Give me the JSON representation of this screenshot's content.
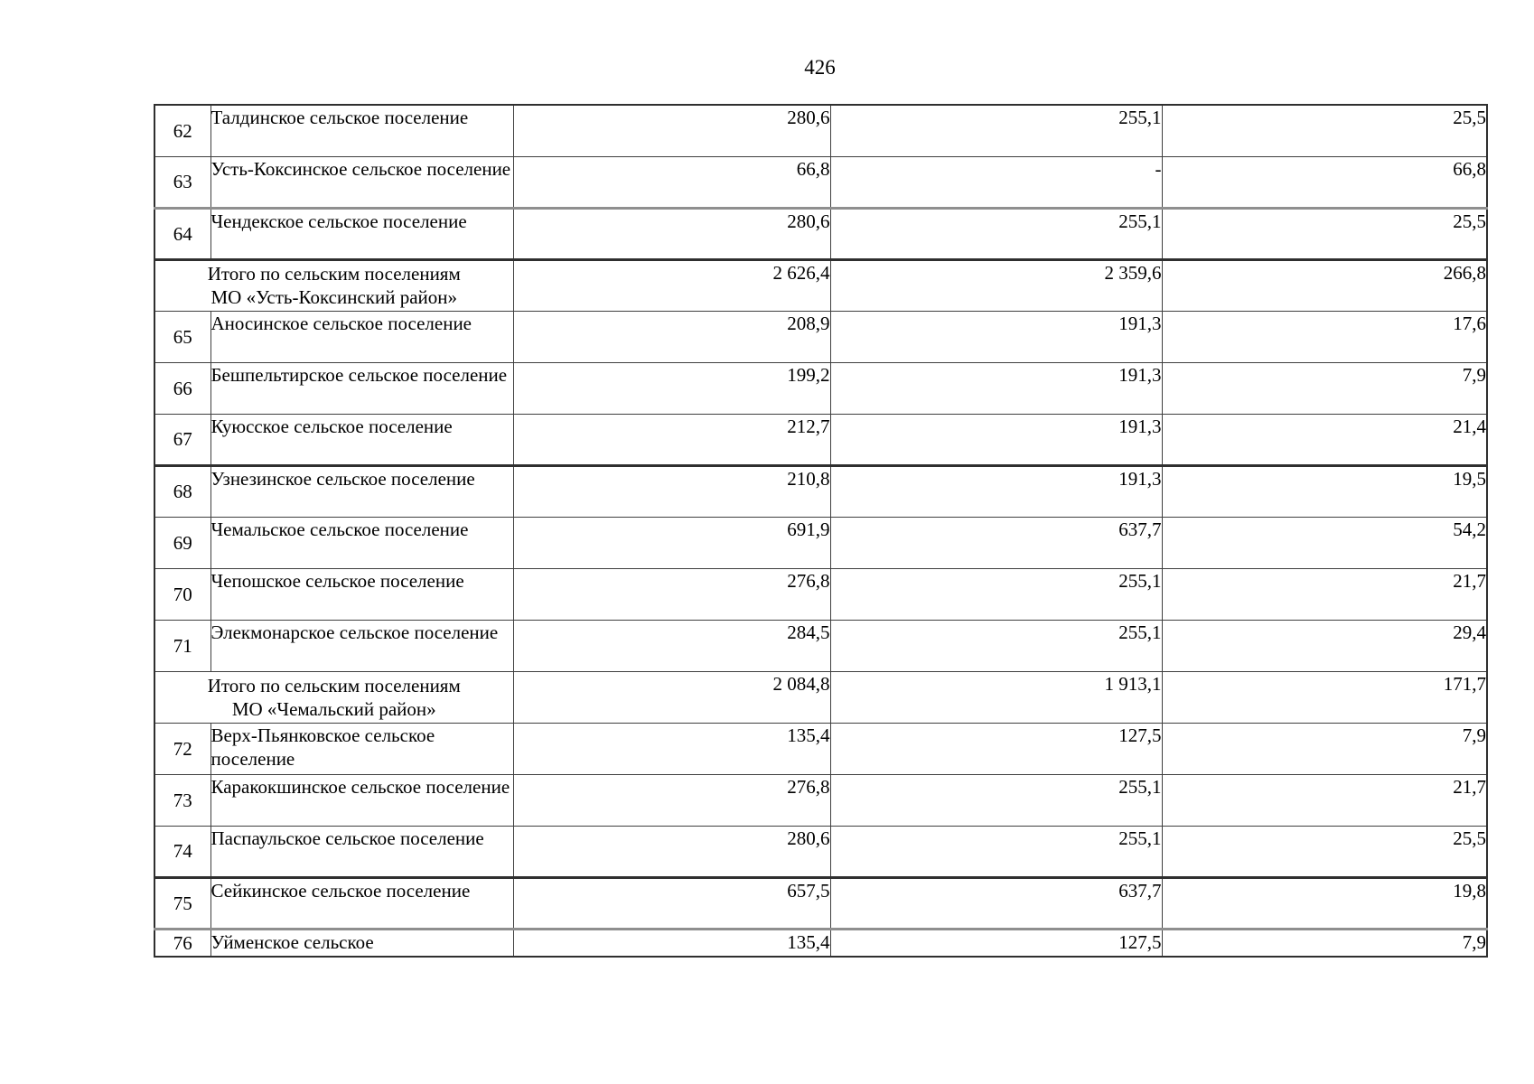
{
  "page": {
    "number": "426"
  },
  "table": {
    "rows": [
      {
        "type": "data",
        "num": "62",
        "name": "Талдинское сельское поселение",
        "v1": "280,6",
        "v2": "255,1",
        "v3": "25,5"
      },
      {
        "type": "data",
        "num": "63",
        "name": "Усть-Коксинское сельское поселение",
        "v1": "66,8",
        "v2": "-",
        "v3": "66,8"
      },
      {
        "type": "data",
        "num": "64",
        "name": "Чендекское сельское поселение",
        "v1": "280,6",
        "v2": "255,1",
        "v3": "25,5",
        "gray": true
      },
      {
        "type": "total",
        "name": "Итого по сельским поселениям\nМО «Усть-Коксинский район»",
        "v1": "2 626,4",
        "v2": "2 359,6",
        "v3": "266,8",
        "thick": true
      },
      {
        "type": "data",
        "num": "65",
        "name": "Аносинское сельское поселение",
        "v1": "208,9",
        "v2": "191,3",
        "v3": "17,6"
      },
      {
        "type": "data",
        "num": "66",
        "name": "Бешпельтирское сельское поселение",
        "v1": "199,2",
        "v2": "191,3",
        "v3": "7,9"
      },
      {
        "type": "data",
        "num": "67",
        "name": "Куюсское сельское поселение",
        "v1": "212,7",
        "v2": "191,3",
        "v3": "21,4"
      },
      {
        "type": "data",
        "num": "68",
        "name": "Узнезинское сельское поселение",
        "v1": "210,8",
        "v2": "191,3",
        "v3": "19,5",
        "thick": true
      },
      {
        "type": "data",
        "num": "69",
        "name": "Чемальское сельское поселение",
        "v1": "691,9",
        "v2": "637,7",
        "v3": "54,2"
      },
      {
        "type": "data",
        "num": "70",
        "name": "Чепошское сельское поселение",
        "v1": "276,8",
        "v2": "255,1",
        "v3": "21,7"
      },
      {
        "type": "data",
        "num": "71",
        "name": "Элекмонарское сельское поселение",
        "v1": "284,5",
        "v2": "255,1",
        "v3": "29,4"
      },
      {
        "type": "total",
        "name": "Итого по сельским поселениям\nМО «Чемальский район»",
        "v1": "2 084,8",
        "v2": "1 913,1",
        "v3": "171,7"
      },
      {
        "type": "data",
        "num": "72",
        "name": "Верх-Пьянковское сельское поселение",
        "v1": "135,4",
        "v2": "127,5",
        "v3": "7,9"
      },
      {
        "type": "data",
        "num": "73",
        "name": "Каракокшинское сельское поселение",
        "v1": "276,8",
        "v2": "255,1",
        "v3": "21,7"
      },
      {
        "type": "data",
        "num": "74",
        "name": "Паспаульское сельское поселение",
        "v1": "280,6",
        "v2": "255,1",
        "v3": "25,5"
      },
      {
        "type": "data",
        "num": "75",
        "name": "Сейкинское сельское поселение",
        "v1": "657,5",
        "v2": "637,7",
        "v3": "19,8",
        "thick": true
      },
      {
        "type": "data",
        "num": "76",
        "name": "Уйменское сельское",
        "v1": "135,4",
        "v2": "127,5",
        "v3": "7,9",
        "gray": true,
        "single_line": true
      }
    ]
  }
}
